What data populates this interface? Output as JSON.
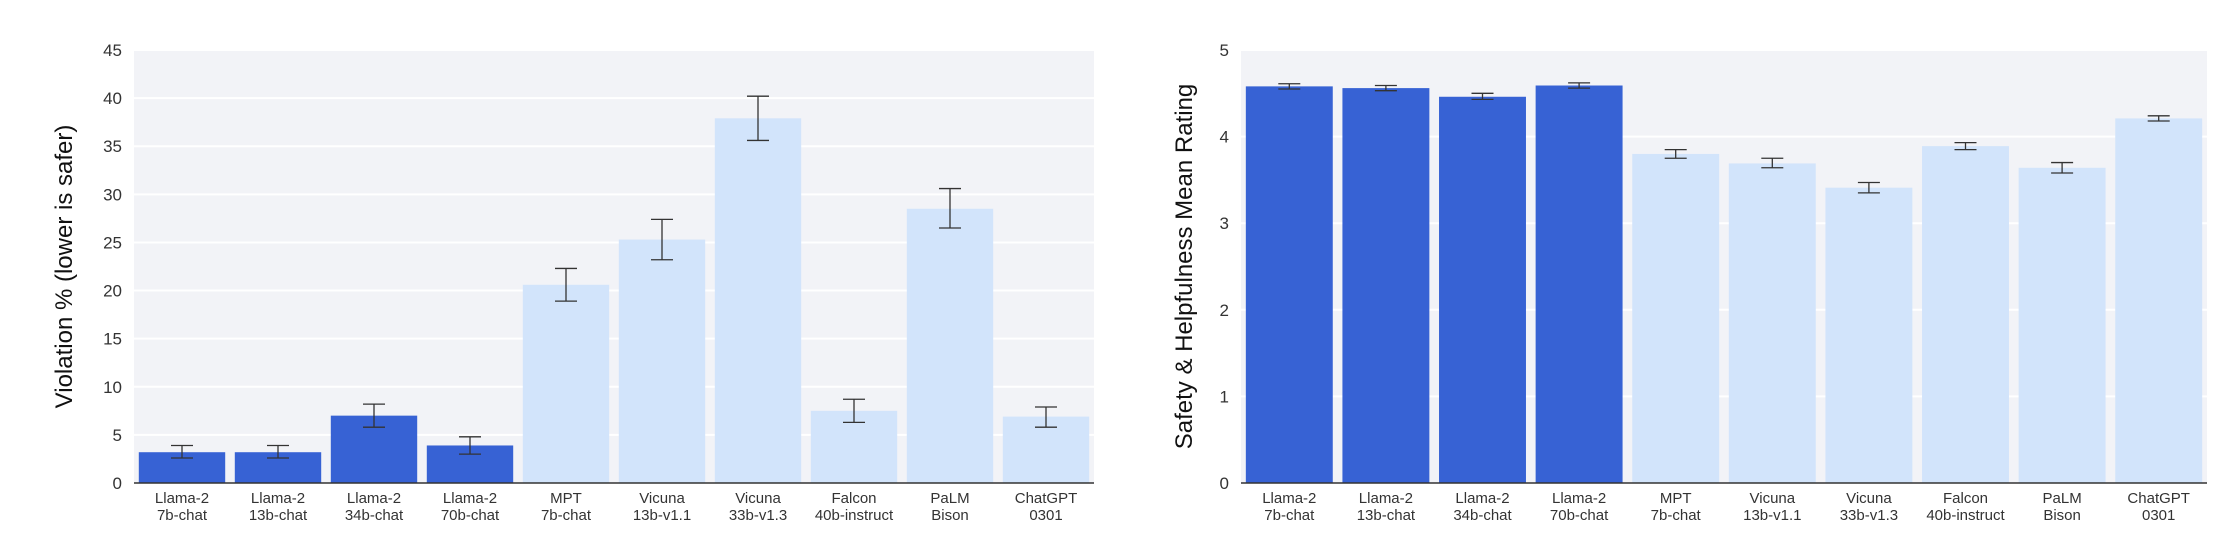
{
  "chart_data": [
    {
      "type": "bar",
      "ylabel": "Violation % (lower is safer)",
      "xlabel": "",
      "ylim": [
        0,
        45
      ],
      "yticks": [
        0,
        5,
        10,
        15,
        20,
        25,
        30,
        35,
        40,
        45
      ],
      "grid": true,
      "categories": [
        [
          "Llama-2",
          "7b-chat"
        ],
        [
          "Llama-2",
          "13b-chat"
        ],
        [
          "Llama-2",
          "34b-chat"
        ],
        [
          "Llama-2",
          "70b-chat"
        ],
        [
          "MPT",
          "7b-chat"
        ],
        [
          "Vicuna",
          "13b-v1.1"
        ],
        [
          "Vicuna",
          "33b-v1.3"
        ],
        [
          "Falcon",
          "40b-instruct"
        ],
        [
          "PaLM",
          "Bison"
        ],
        [
          "ChatGPT",
          "0301"
        ]
      ],
      "values": [
        3.2,
        3.2,
        7.0,
        3.9,
        20.6,
        25.3,
        37.9,
        7.5,
        28.5,
        6.9
      ],
      "error_low": [
        2.6,
        2.6,
        5.8,
        3.0,
        18.9,
        23.2,
        35.6,
        6.3,
        26.5,
        5.8
      ],
      "error_high": [
        3.9,
        3.9,
        8.2,
        4.8,
        22.3,
        27.4,
        40.2,
        8.7,
        30.6,
        7.9
      ],
      "colors": [
        "#3762d4",
        "#3762d4",
        "#3762d4",
        "#3762d4",
        "#d2e4fb",
        "#d2e4fb",
        "#d2e4fb",
        "#d2e4fb",
        "#d2e4fb",
        "#d2e4fb"
      ]
    },
    {
      "type": "bar",
      "ylabel": "Safety & Helpfulness Mean Rating",
      "xlabel": "",
      "ylim": [
        0,
        5
      ],
      "yticks": [
        0,
        1,
        2,
        3,
        4,
        5
      ],
      "grid": true,
      "categories": [
        [
          "Llama-2",
          "7b-chat"
        ],
        [
          "Llama-2",
          "13b-chat"
        ],
        [
          "Llama-2",
          "34b-chat"
        ],
        [
          "Llama-2",
          "70b-chat"
        ],
        [
          "MPT",
          "7b-chat"
        ],
        [
          "Vicuna",
          "13b-v1.1"
        ],
        [
          "Vicuna",
          "33b-v1.3"
        ],
        [
          "Falcon",
          "40b-instruct"
        ],
        [
          "PaLM",
          "Bison"
        ],
        [
          "ChatGPT",
          "0301"
        ]
      ],
      "values": [
        4.58,
        4.56,
        4.46,
        4.59,
        3.8,
        3.69,
        3.41,
        3.89,
        3.64,
        4.21
      ],
      "error_low": [
        4.55,
        4.53,
        4.43,
        4.56,
        3.75,
        3.64,
        3.35,
        3.85,
        3.58,
        4.18
      ],
      "error_high": [
        4.61,
        4.59,
        4.5,
        4.62,
        3.85,
        3.75,
        3.47,
        3.93,
        3.7,
        4.24
      ],
      "colors": [
        "#3762d4",
        "#3762d4",
        "#3762d4",
        "#3762d4",
        "#d2e4fb",
        "#d2e4fb",
        "#d2e4fb",
        "#d2e4fb",
        "#d2e4fb",
        "#d2e4fb"
      ]
    }
  ]
}
